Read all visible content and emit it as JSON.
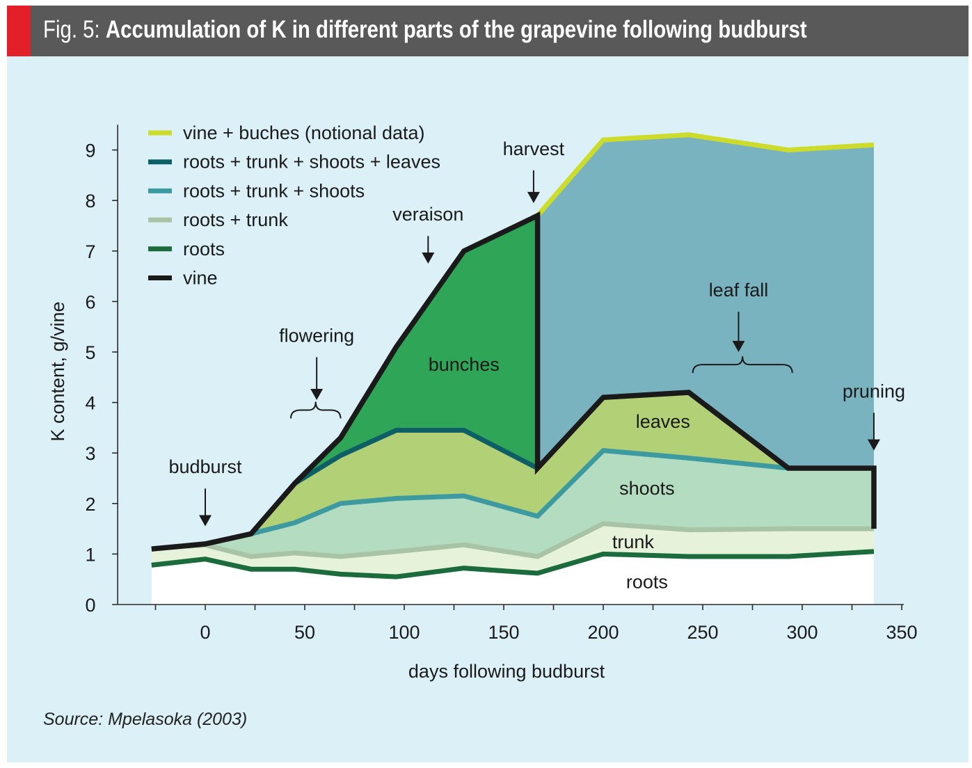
{
  "header": {
    "prefix": "Fig. 5:",
    "title": "Accumulation of K in different parts of the grapevine following budburst"
  },
  "footer": {
    "source": "Source: Mpelasoka (2003)"
  },
  "colors": {
    "background": "#dcf0f8",
    "title_bar": "#595959",
    "accent_red": "#e3202a",
    "vine_bunches_line": "#cddc2a",
    "leaves_line": "#0d5f65",
    "shoots_line": "#3c9aa0",
    "trunk_line": "#a9c3a7",
    "roots_line": "#1b6b3c",
    "vine_line": "#1a1a1a",
    "fill_post_harvest": "#7ab3c0",
    "fill_bunches": "#2fa558",
    "fill_leaves": "#b2d177",
    "fill_shoots": "#b4dcc1",
    "fill_trunk": "#e6f3da",
    "fill_roots": "#ffffff"
  },
  "chart_data": {
    "type": "area",
    "title": "Accumulation of K in different parts of the grapevine following budburst",
    "xlabel": "days following budburst",
    "ylabel": "K content, g/vine",
    "xlim": [
      -44,
      351
    ],
    "ylim": [
      0,
      9.5
    ],
    "xticks": [
      0,
      50,
      100,
      150,
      200,
      250,
      300,
      350
    ],
    "yticks": [
      0,
      1,
      2,
      3,
      4,
      5,
      6,
      7,
      8,
      9
    ],
    "legend_position": "top-left",
    "grid": false,
    "series": [
      {
        "name": "vine + buches (notional data)",
        "x": [
          167,
          200,
          243,
          293,
          336
        ],
        "values": [
          7.7,
          9.2,
          9.3,
          9.0,
          9.1
        ]
      },
      {
        "name": "roots + trunk + shoots + leaves",
        "x": [
          45,
          68,
          96,
          130,
          167,
          200,
          243,
          293,
          336
        ],
        "values": [
          2.4,
          2.95,
          3.45,
          3.45,
          2.7,
          4.1,
          4.2,
          2.7,
          2.7
        ]
      },
      {
        "name": "roots + trunk + shoots",
        "x": [
          -27,
          0,
          23,
          45,
          68,
          96,
          130,
          167,
          200,
          243,
          293,
          336
        ],
        "values": [
          1.1,
          1.2,
          1.4,
          1.62,
          2.0,
          2.1,
          2.15,
          1.75,
          3.05,
          2.9,
          2.7,
          2.7
        ]
      },
      {
        "name": "roots + trunk",
        "x": [
          -27,
          0,
          23,
          45,
          68,
          96,
          130,
          167,
          200,
          243,
          293,
          336
        ],
        "values": [
          1.1,
          1.18,
          0.95,
          1.02,
          0.95,
          1.05,
          1.18,
          0.95,
          1.6,
          1.48,
          1.5,
          1.5
        ]
      },
      {
        "name": "roots",
        "x": [
          -27,
          0,
          23,
          45,
          68,
          96,
          130,
          167,
          200,
          243,
          293,
          336
        ],
        "values": [
          0.78,
          0.9,
          0.7,
          0.7,
          0.6,
          0.55,
          0.72,
          0.62,
          1.0,
          0.95,
          0.95,
          1.05
        ]
      },
      {
        "name": "vine",
        "x": [
          -27,
          0,
          23,
          45,
          68,
          96,
          130,
          167,
          167,
          200,
          243,
          293,
          336,
          336
        ],
        "values": [
          1.1,
          1.2,
          1.4,
          2.4,
          3.3,
          5.1,
          7.0,
          7.7,
          2.7,
          4.1,
          4.2,
          2.7,
          2.7,
          1.5
        ]
      }
    ],
    "region_labels": [
      {
        "text": "bunches",
        "x": 130,
        "y": 4.75
      },
      {
        "text": "leaves",
        "x": 230,
        "y": 3.62
      },
      {
        "text": "shoots",
        "x": 222,
        "y": 2.3
      },
      {
        "text": "trunk",
        "x": 215,
        "y": 1.24
      },
      {
        "text": "roots",
        "x": 222,
        "y": 0.45
      }
    ],
    "annotations": [
      {
        "text": "budburst",
        "x": 0,
        "y": 2.6
      },
      {
        "text": "flowering",
        "x": 56,
        "y": 5.2
      },
      {
        "text": "veraison",
        "x": 112,
        "y": 7.6
      },
      {
        "text": "harvest",
        "x": 165,
        "y": 8.9
      },
      {
        "text": "leaf fall",
        "x": 268,
        "y": 6.1
      },
      {
        "text": "pruning",
        "x": 336,
        "y": 4.1
      }
    ]
  }
}
